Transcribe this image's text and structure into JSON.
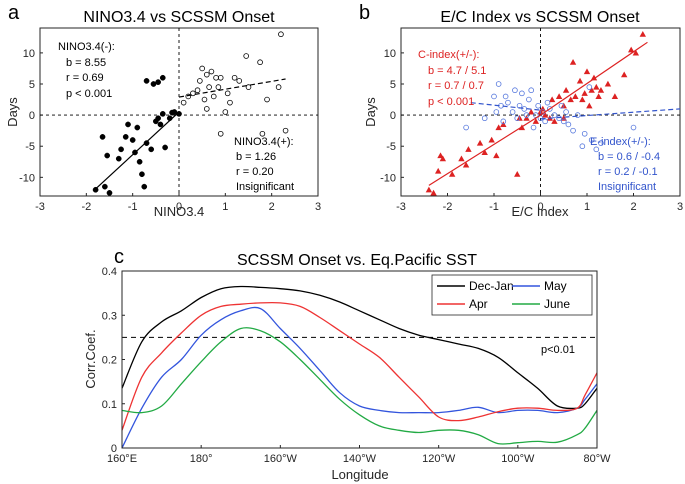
{
  "chart_data": [
    {
      "panel": "a",
      "type": "scatter",
      "title": "NINO3.4 vs SCSSM Onset",
      "xlabel": "NINO3.4",
      "ylabel": "Days",
      "xlim": [
        -3,
        3
      ],
      "ylim": [
        -13,
        14
      ],
      "xticks": [
        -3,
        -2,
        -1,
        0,
        1,
        2,
        3
      ],
      "yticks": [
        -10,
        -5,
        0,
        5,
        10
      ],
      "series": [
        {
          "name": "NINO3.4(-)",
          "marker": "filled-circle",
          "color": "#000000",
          "points": [
            [
              -1.8,
              -12
            ],
            [
              -1.6,
              -11.5
            ],
            [
              -1.5,
              -12.5
            ],
            [
              -1.65,
              -3.5
            ],
            [
              -1.55,
              -6.5
            ],
            [
              -1.3,
              -7
            ],
            [
              -1.25,
              -5.5
            ],
            [
              -1.15,
              -3.5
            ],
            [
              -1.1,
              -1.5
            ],
            [
              -1.0,
              -4
            ],
            [
              -0.95,
              -6
            ],
            [
              -0.9,
              -2
            ],
            [
              -0.85,
              -7.5
            ],
            [
              -0.8,
              -9.5
            ],
            [
              -0.75,
              -11.5
            ],
            [
              -0.7,
              -4.5
            ],
            [
              -0.6,
              -5.5
            ],
            [
              -0.5,
              -1
            ],
            [
              -0.45,
              -0.5
            ],
            [
              -0.4,
              -1.5
            ],
            [
              -0.35,
              0.2
            ],
            [
              -0.3,
              -5.2
            ],
            [
              -0.2,
              -0.5
            ],
            [
              -0.15,
              0.4
            ],
            [
              -0.1,
              0.5
            ],
            [
              0.0,
              0.2
            ],
            [
              -0.7,
              5.5
            ],
            [
              -0.55,
              5
            ],
            [
              -0.45,
              5.3
            ],
            [
              -0.35,
              6
            ]
          ]
        },
        {
          "name": "NINO3.4(+)",
          "marker": "open-circle",
          "color": "#000000",
          "points": [
            [
              0.1,
              2
            ],
            [
              0.2,
              3
            ],
            [
              0.3,
              3.5
            ],
            [
              0.4,
              4
            ],
            [
              0.45,
              5.5
            ],
            [
              0.5,
              7.5
            ],
            [
              0.55,
              2.5
            ],
            [
              0.6,
              6.5
            ],
            [
              0.65,
              4.5
            ],
            [
              0.7,
              7
            ],
            [
              0.75,
              3
            ],
            [
              0.8,
              6
            ],
            [
              0.85,
              4.5
            ],
            [
              0.9,
              6
            ],
            [
              1.0,
              0.5
            ],
            [
              1.05,
              3.5
            ],
            [
              1.1,
              2
            ],
            [
              1.2,
              6
            ],
            [
              1.3,
              5.5
            ],
            [
              1.45,
              9.5
            ],
            [
              1.5,
              4.5
            ],
            [
              1.75,
              8.5
            ],
            [
              1.8,
              -3
            ],
            [
              1.9,
              2.5
            ],
            [
              2.15,
              4.5
            ],
            [
              2.2,
              13
            ],
            [
              2.3,
              -2.5
            ],
            [
              0.6,
              1
            ],
            [
              0.9,
              -3
            ]
          ]
        }
      ],
      "fit_lines": [
        {
          "name": "NINO3.4(-)",
          "style": "solid",
          "x": [
            -1.85,
            0.0
          ],
          "y": [
            -12.2,
            0.5
          ]
        },
        {
          "name": "NINO3.4(+)",
          "style": "dashed",
          "x": [
            0.0,
            2.3
          ],
          "y": [
            2.9,
            5.8
          ]
        }
      ],
      "annotations": [
        {
          "lines": [
            "NINO3.4(-):",
            "b = 8.55",
            "r = 0.69",
            "p < 0.001"
          ],
          "color": "#000000",
          "position": "top-left"
        },
        {
          "lines": [
            "NINO3.4(+):",
            "b = 1.26",
            "r = 0.20",
            "Insignificant"
          ],
          "color": "#000000",
          "position": "bottom-right"
        }
      ]
    },
    {
      "panel": "b",
      "type": "scatter",
      "title": "E/C Index vs SCSSM Onset",
      "xlabel": "E/C Index",
      "ylabel": "Days",
      "xlim": [
        -3,
        3
      ],
      "ylim": [
        -13,
        14
      ],
      "xticks": [
        -3,
        -2,
        -1,
        0,
        1,
        2,
        3
      ],
      "yticks": [
        -10,
        -5,
        0,
        5,
        10
      ],
      "series": [
        {
          "name": "C-index",
          "marker": "filled-triangle",
          "color": "#dd2222",
          "points": [
            [
              -2.4,
              -12
            ],
            [
              -2.3,
              -12.5
            ],
            [
              -2.2,
              -9
            ],
            [
              -2.1,
              -7
            ],
            [
              -2.15,
              -6.5
            ],
            [
              -1.9,
              -9.5
            ],
            [
              -1.7,
              -7
            ],
            [
              -1.6,
              -8
            ],
            [
              -1.55,
              -5.5
            ],
            [
              -1.3,
              -4.5
            ],
            [
              -1.2,
              -6
            ],
            [
              -1.05,
              -4
            ],
            [
              -0.95,
              -6.5
            ],
            [
              -0.9,
              -2
            ],
            [
              -0.8,
              -1.5
            ],
            [
              -0.5,
              -9.5
            ],
            [
              -0.45,
              -0.5
            ],
            [
              -0.4,
              -2
            ],
            [
              -0.3,
              -0.5
            ],
            [
              -0.2,
              0.5
            ],
            [
              -0.1,
              -1
            ],
            [
              0.0,
              0.5
            ],
            [
              0.05,
              1
            ],
            [
              0.1,
              0
            ],
            [
              0.2,
              -0.5
            ],
            [
              0.25,
              2.5
            ],
            [
              0.3,
              -1
            ],
            [
              0.4,
              3
            ],
            [
              0.5,
              -0.5
            ],
            [
              0.5,
              1.5
            ],
            [
              0.55,
              4
            ],
            [
              0.65,
              2.5
            ],
            [
              0.7,
              8.5
            ],
            [
              0.75,
              3
            ],
            [
              0.85,
              5.5
            ],
            [
              0.9,
              2.5
            ],
            [
              0.95,
              3.5
            ],
            [
              1.0,
              7
            ],
            [
              1.05,
              1.5
            ],
            [
              1.1,
              4
            ],
            [
              1.15,
              6
            ],
            [
              1.2,
              4.5
            ],
            [
              1.25,
              3
            ],
            [
              1.3,
              4
            ],
            [
              1.45,
              5
            ],
            [
              1.6,
              3
            ],
            [
              1.8,
              6.5
            ],
            [
              1.95,
              10.5
            ],
            [
              2.05,
              10
            ],
            [
              2.2,
              13
            ]
          ]
        },
        {
          "name": "E-index",
          "marker": "open-circle",
          "color": "#5577dd",
          "points": [
            [
              -1.6,
              -2
            ],
            [
              -1.2,
              -0.5
            ],
            [
              -1.0,
              3
            ],
            [
              -0.95,
              0.5
            ],
            [
              -0.9,
              5
            ],
            [
              -0.85,
              1.5
            ],
            [
              -0.8,
              -1
            ],
            [
              -0.75,
              3
            ],
            [
              -0.7,
              2
            ],
            [
              -0.6,
              0.5
            ],
            [
              -0.55,
              4
            ],
            [
              -0.5,
              -0.5
            ],
            [
              -0.45,
              1.5
            ],
            [
              -0.4,
              3.5
            ],
            [
              -0.35,
              1
            ],
            [
              -0.3,
              0
            ],
            [
              -0.25,
              2.5
            ],
            [
              -0.2,
              4
            ],
            [
              -0.15,
              -2
            ],
            [
              -0.1,
              0
            ],
            [
              -0.05,
              1.5
            ],
            [
              0.0,
              -0.5
            ],
            [
              0.05,
              0.5
            ],
            [
              0.1,
              -1
            ],
            [
              0.15,
              2
            ],
            [
              0.2,
              1
            ],
            [
              0.3,
              0
            ],
            [
              0.4,
              -0.5
            ],
            [
              0.45,
              1.5
            ],
            [
              0.5,
              -1
            ],
            [
              0.55,
              0.5
            ],
            [
              0.6,
              -1.5
            ],
            [
              0.7,
              -2.5
            ],
            [
              0.8,
              0
            ],
            [
              0.9,
              -5
            ],
            [
              0.95,
              -3
            ],
            [
              1.05,
              4.5
            ],
            [
              1.1,
              -4
            ],
            [
              1.2,
              -5.5
            ],
            [
              1.3,
              -4.5
            ],
            [
              2.0,
              -2
            ]
          ]
        }
      ],
      "fit_lines": [
        {
          "name": "C-index(-)",
          "style": "solid",
          "color": "#dd2222",
          "x": [
            -2.4,
            0.0
          ],
          "y": [
            -11.3,
            0.0
          ]
        },
        {
          "name": "C-index(+)",
          "style": "solid",
          "color": "#dd2222",
          "x": [
            0.0,
            2.3
          ],
          "y": [
            0.0,
            11.7
          ]
        },
        {
          "name": "E-index(-)",
          "style": "dashed",
          "color": "#3355cc",
          "x": [
            -1.5,
            0.0
          ],
          "y": [
            2.0,
            0.8
          ]
        },
        {
          "name": "E-index(+)",
          "style": "dashed",
          "color": "#3355cc",
          "x": [
            0.0,
            3.0
          ],
          "y": [
            -0.6,
            1.0
          ]
        }
      ],
      "annotations": [
        {
          "lines": [
            "C-index(+/-):",
            "b = 4.7 / 5.1",
            "r = 0.7 / 0.7",
            "p < 0.001"
          ],
          "color": "#dd2222",
          "position": "top-left"
        },
        {
          "lines": [
            "E-index(+/-):",
            "b = 0.6 / -0.4",
            "r = 0.2 / -0.1",
            "Insignificant"
          ],
          "color": "#3355cc",
          "position": "bottom-right"
        }
      ]
    },
    {
      "panel": "c",
      "type": "line",
      "title": "SCSSM Onset vs. Eq.Pacific SST",
      "xlabel": "Longitude",
      "ylabel": "Corr.Coef.",
      "xlim": [
        160,
        280
      ],
      "ylim": [
        0,
        0.4
      ],
      "xticks": [
        160,
        180,
        200,
        220,
        240,
        260,
        280
      ],
      "xticklabels": [
        "160°E",
        "180°",
        "160°W",
        "140°W",
        "120°W",
        "100°W",
        "80°W"
      ],
      "yticks": [
        0,
        0.1,
        0.2,
        0.3,
        0.4
      ],
      "yticklabels": [
        "0",
        "0.1",
        "0.2",
        "0.3",
        "0.4"
      ],
      "x": [
        160,
        165,
        170,
        175,
        180,
        185,
        190,
        195,
        200,
        205,
        210,
        215,
        220,
        225,
        230,
        235,
        240,
        245,
        250,
        255,
        260,
        265,
        270,
        275,
        277,
        280
      ],
      "series": [
        {
          "name": "Dec-Jan",
          "color": "#000000",
          "values": [
            0.135,
            0.24,
            0.285,
            0.31,
            0.34,
            0.36,
            0.365,
            0.363,
            0.36,
            0.355,
            0.345,
            0.33,
            0.31,
            0.29,
            0.27,
            0.255,
            0.245,
            0.235,
            0.225,
            0.205,
            0.17,
            0.135,
            0.095,
            0.09,
            0.1,
            0.135
          ]
        },
        {
          "name": "May",
          "color": "#3355dd",
          "values": [
            0.0,
            0.09,
            0.16,
            0.2,
            0.255,
            0.29,
            0.31,
            0.315,
            0.27,
            0.225,
            0.175,
            0.125,
            0.095,
            0.085,
            0.08,
            0.08,
            0.08,
            0.085,
            0.092,
            0.08,
            0.085,
            0.085,
            0.08,
            0.09,
            0.11,
            0.145
          ]
        },
        {
          "name": "Apr",
          "color": "#ee3333",
          "values": [
            0.04,
            0.16,
            0.215,
            0.26,
            0.3,
            0.32,
            0.325,
            0.328,
            0.328,
            0.32,
            0.295,
            0.265,
            0.235,
            0.205,
            0.16,
            0.115,
            0.07,
            0.062,
            0.07,
            0.082,
            0.09,
            0.09,
            0.085,
            0.09,
            0.12,
            0.17
          ]
        },
        {
          "name": "June",
          "color": "#22aa44",
          "values": [
            0.085,
            0.08,
            0.095,
            0.145,
            0.195,
            0.24,
            0.27,
            0.265,
            0.24,
            0.2,
            0.155,
            0.11,
            0.075,
            0.05,
            0.04,
            0.035,
            0.04,
            0.04,
            0.03,
            0.01,
            0.012,
            0.015,
            0.013,
            0.03,
            0.045,
            0.085
          ]
        }
      ],
      "threshold": {
        "value": 0.25,
        "label": "p<0.01"
      },
      "legend": {
        "position": "top-right",
        "order": [
          "Dec-Jan",
          "May",
          "Apr",
          "June"
        ]
      }
    }
  ],
  "panels": {
    "a": {
      "letter": "a"
    },
    "b": {
      "letter": "b"
    },
    "c": {
      "letter": "c"
    }
  }
}
